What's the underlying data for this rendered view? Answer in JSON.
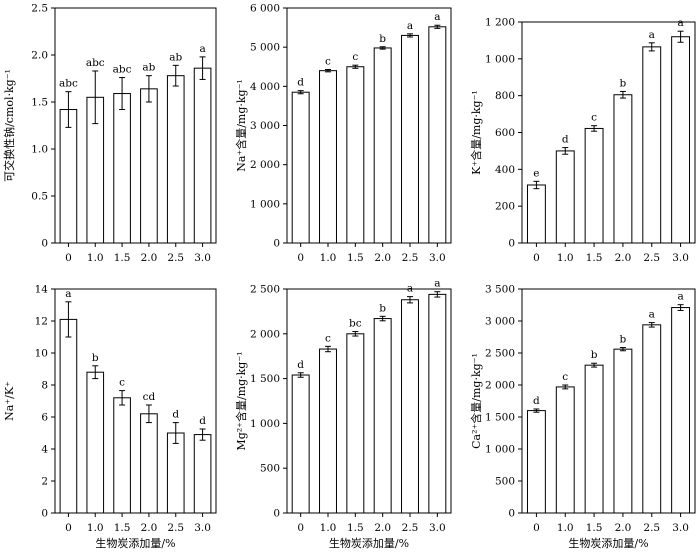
{
  "chart_data": [
    {
      "type": "bar",
      "ylabel": "可交换性钠/cmol·kg⁻¹",
      "xlabel": "",
      "categories": [
        "0",
        "1.0",
        "1.5",
        "2.0",
        "2.5",
        "3.0"
      ],
      "values": [
        1.42,
        1.55,
        1.59,
        1.64,
        1.78,
        1.86
      ],
      "errors": [
        0.19,
        0.28,
        0.17,
        0.14,
        0.11,
        0.12
      ],
      "letters": [
        "abc",
        "abc",
        "abc",
        "ab",
        "ab",
        "a"
      ],
      "ylim": [
        0,
        2.5
      ],
      "yticks": [
        "0",
        "0.5",
        "1.0",
        "1.5",
        "2.0",
        "2.5"
      ],
      "ytick_values": [
        0,
        0.5,
        1.0,
        1.5,
        2.0,
        2.5
      ]
    },
    {
      "type": "bar",
      "ylabel": "Na⁺含量/mg·kg⁻¹",
      "xlabel": "",
      "categories": [
        "0",
        "1.0",
        "1.5",
        "2.0",
        "2.5",
        "3.0"
      ],
      "values": [
        3850,
        4400,
        4500,
        4980,
        5300,
        5520
      ],
      "errors": [
        40,
        30,
        40,
        30,
        40,
        40
      ],
      "letters": [
        "d",
        "c",
        "c",
        "b",
        "a",
        "a"
      ],
      "ylim": [
        0,
        6000
      ],
      "yticks": [
        "0",
        "1 000",
        "2 000",
        "3 000",
        "4 000",
        "5 000",
        "6 000"
      ],
      "ytick_values": [
        0,
        1000,
        2000,
        3000,
        4000,
        5000,
        6000
      ]
    },
    {
      "type": "bar",
      "ylabel": "K⁺含量/mg·kg⁻¹",
      "xlabel": "",
      "categories": [
        "0",
        "1.0",
        "1.5",
        "2.0",
        "2.5",
        "3.0"
      ],
      "values": [
        315,
        500,
        622,
        805,
        1065,
        1120
      ],
      "errors": [
        20,
        18,
        15,
        18,
        22,
        30
      ],
      "letters": [
        "e",
        "d",
        "c",
        "b",
        "a",
        "a"
      ],
      "ylim": [
        0,
        1200
      ],
      "yticks": [
        "0",
        "200",
        "400",
        "600",
        "800",
        "1 000",
        "1 200"
      ],
      "ytick_values": [
        0,
        200,
        400,
        600,
        800,
        1000,
        1200
      ]
    },
    {
      "type": "bar",
      "ylabel": "Na⁺/K⁺",
      "xlabel": "生物炭添加量/%",
      "categories": [
        "0",
        "1.0",
        "1.5",
        "2.0",
        "2.5",
        "3.0"
      ],
      "values": [
        12.1,
        8.8,
        7.2,
        6.2,
        5.0,
        4.9
      ],
      "errors": [
        1.1,
        0.4,
        0.45,
        0.55,
        0.65,
        0.35
      ],
      "letters": [
        "a",
        "b",
        "c",
        "cd",
        "d",
        "d"
      ],
      "ylim": [
        0,
        14
      ],
      "yticks": [
        "0",
        "2",
        "4",
        "6",
        "8",
        "10",
        "12",
        "14"
      ],
      "ytick_values": [
        0,
        2,
        4,
        6,
        8,
        10,
        12,
        14
      ]
    },
    {
      "type": "bar",
      "ylabel": "Mg²⁺含量/mg·kg⁻¹",
      "xlabel": "生物炭添加量/%",
      "categories": [
        "0",
        "1.0",
        "1.5",
        "2.0",
        "2.5",
        "3.0"
      ],
      "values": [
        1540,
        1830,
        2000,
        2170,
        2380,
        2440
      ],
      "errors": [
        25,
        30,
        25,
        25,
        35,
        30
      ],
      "letters": [
        "d",
        "c",
        "bc",
        "b",
        "a",
        "a"
      ],
      "ylim": [
        0,
        2500
      ],
      "yticks": [
        "0",
        "500",
        "1 000",
        "1 500",
        "2 000",
        "2 500"
      ],
      "ytick_values": [
        0,
        500,
        1000,
        1500,
        2000,
        2500
      ]
    },
    {
      "type": "bar",
      "ylabel": "Ca²⁺含量/mg·kg⁻¹",
      "xlabel": "生物炭添加量/%",
      "categories": [
        "0",
        "1.0",
        "1.5",
        "2.0",
        "2.5",
        "3.0"
      ],
      "values": [
        1600,
        1970,
        2310,
        2560,
        2940,
        3210
      ],
      "errors": [
        25,
        30,
        30,
        25,
        35,
        45
      ],
      "letters": [
        "d",
        "c",
        "b",
        "b",
        "a",
        "a"
      ],
      "ylim": [
        0,
        3500
      ],
      "yticks": [
        "0",
        "500",
        "1 000",
        "1 500",
        "2 000",
        "2 500",
        "3 000",
        "3 500"
      ],
      "ytick_values": [
        0,
        500,
        1000,
        1500,
        2000,
        2500,
        3000,
        3500
      ]
    }
  ]
}
